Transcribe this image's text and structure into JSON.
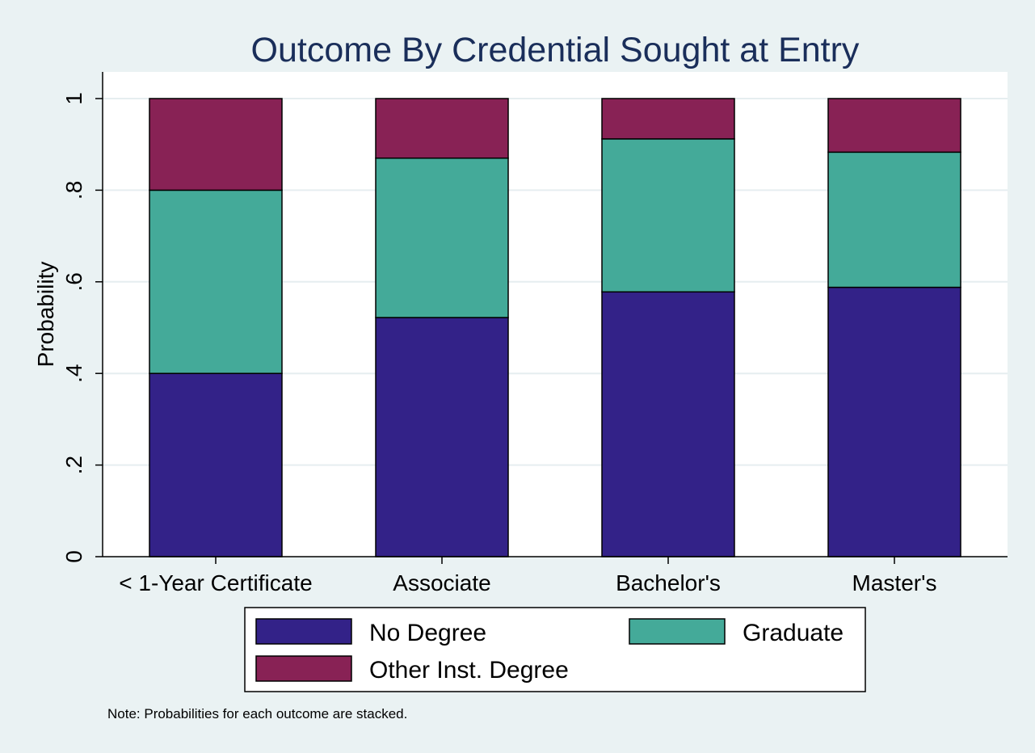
{
  "chart_data": {
    "type": "bar",
    "stacked": true,
    "title": "Outcome By Credential Sought at Entry",
    "xlabel": "",
    "ylabel": "Probability",
    "ylim": [
      0,
      1.05
    ],
    "y_ticks": [
      0,
      0.2,
      0.4,
      0.6,
      0.8,
      1
    ],
    "y_tick_labels": [
      "0",
      ".2",
      ".4",
      ".6",
      ".8",
      "1"
    ],
    "grid": true,
    "categories": [
      "< 1-Year Certificate",
      "Associate",
      "Bachelor's",
      "Master's"
    ],
    "series": [
      {
        "name": "No Degree",
        "color": "#332288",
        "values": [
          0.4,
          0.522,
          0.578,
          0.588
        ]
      },
      {
        "name": "Graduate",
        "color": "#44aa99",
        "values": [
          0.4,
          0.348,
          0.334,
          0.295
        ]
      },
      {
        "name": "Other Inst. Degree",
        "color": "#882255",
        "values": [
          0.2,
          0.13,
          0.088,
          0.117
        ]
      }
    ],
    "legend": {
      "placement": "bottom",
      "columns": 2
    },
    "note": "Note: Probabilities for each outcome are stacked."
  }
}
